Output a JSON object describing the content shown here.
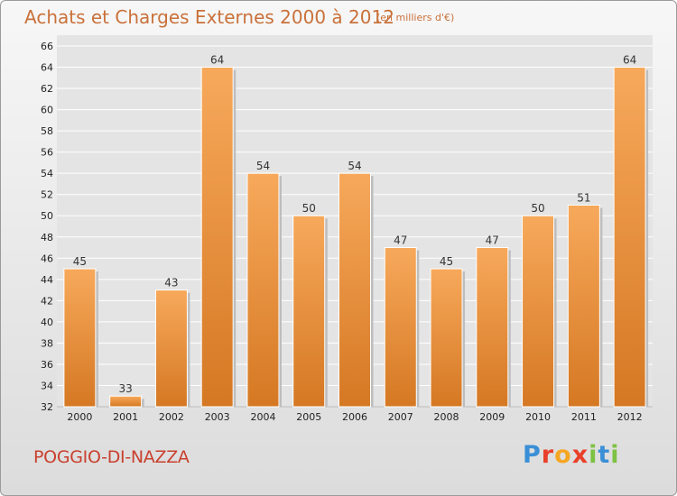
{
  "header": {
    "title": "Achats et Charges Externes 2000 à 2012",
    "subtitle": "(en milliers d'€)"
  },
  "footer": {
    "commune": "POGGIO-DI-NAZZA",
    "logo_text": "Proxiti",
    "logo_colors": [
      "#3a8fd6",
      "#e8402a",
      "#f5a623",
      "#e8402a",
      "#7dc242",
      "#3a8fd6",
      "#7dc242"
    ]
  },
  "colors": {
    "bar_light": "#f7a95b",
    "bar_dark": "#d57823",
    "grid": "#ffffff",
    "axis_text": "#222222",
    "title": "#c9713a",
    "commune": "#c9402e"
  },
  "chart_data": {
    "type": "bar",
    "title": "Achats et Charges Externes 2000 à 2012",
    "subtitle": "(en milliers d'€)",
    "categories": [
      "2000",
      "2001",
      "2002",
      "2003",
      "2004",
      "2005",
      "2006",
      "2007",
      "2008",
      "2009",
      "2010",
      "2011",
      "2012"
    ],
    "values": [
      45,
      33,
      43,
      64,
      54,
      50,
      54,
      47,
      45,
      47,
      50,
      51,
      64
    ],
    "ylim": [
      32,
      66
    ],
    "yticks": [
      32,
      34,
      36,
      38,
      40,
      42,
      44,
      46,
      48,
      50,
      52,
      54,
      56,
      58,
      60,
      62,
      64,
      66
    ],
    "grid": true,
    "data_labels": true
  }
}
